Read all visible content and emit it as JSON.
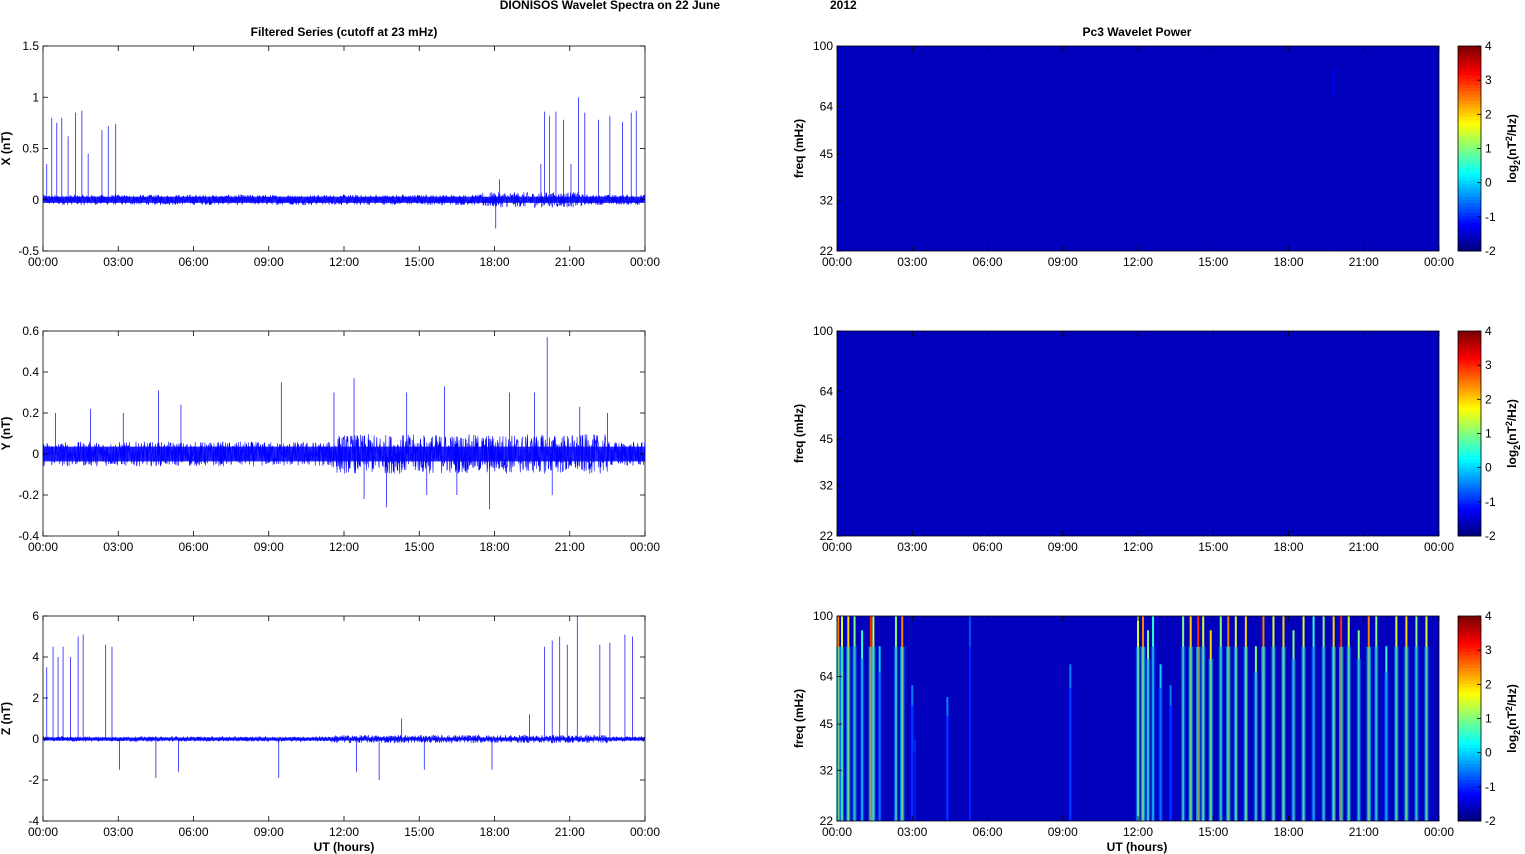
{
  "figure": {
    "title": "DIONISOS Wavelet Spectra on 22 June",
    "title_year": "2012",
    "left_title": "Filtered Series (cutoff at 23 mHz)",
    "right_title": "Pc3 Wavelet Power",
    "xlabel": "UT (hours)"
  },
  "colors": {
    "series_line": "#0000ff",
    "heatmap_background": "#00008f",
    "axes": "#000000"
  },
  "chart_data": [
    {
      "type": "line",
      "ylabel": "X (nT)",
      "x_range": [
        "00:00",
        "24:00"
      ],
      "xticks": [
        "00:00",
        "03:00",
        "06:00",
        "09:00",
        "12:00",
        "15:00",
        "18:00",
        "21:00",
        "00:00"
      ],
      "ylim": [
        -0.5,
        1.5
      ],
      "yticks": [
        "-0.5",
        "0",
        "0.5",
        "1",
        "1.5"
      ],
      "baseline_noise_nT": 0.05,
      "spikes": [
        {
          "t_hours": 0.15,
          "value": 0.35
        },
        {
          "t_hours": 0.35,
          "value": 0.8
        },
        {
          "t_hours": 0.55,
          "value": 0.75
        },
        {
          "t_hours": 0.75,
          "value": 0.8
        },
        {
          "t_hours": 1.0,
          "value": 0.62
        },
        {
          "t_hours": 1.3,
          "value": 0.85
        },
        {
          "t_hours": 1.55,
          "value": 0.87
        },
        {
          "t_hours": 1.8,
          "value": 0.45
        },
        {
          "t_hours": 2.35,
          "value": 0.68
        },
        {
          "t_hours": 2.6,
          "value": 0.72
        },
        {
          "t_hours": 2.9,
          "value": 0.74
        },
        {
          "t_hours": 18.05,
          "value": -0.28
        },
        {
          "t_hours": 18.2,
          "value": 0.2
        },
        {
          "t_hours": 19.85,
          "value": 0.35
        },
        {
          "t_hours": 20.0,
          "value": 0.86
        },
        {
          "t_hours": 20.2,
          "value": 0.82
        },
        {
          "t_hours": 20.45,
          "value": 0.86
        },
        {
          "t_hours": 20.75,
          "value": 0.78
        },
        {
          "t_hours": 21.05,
          "value": 0.35
        },
        {
          "t_hours": 21.35,
          "value": 1.0
        },
        {
          "t_hours": 21.6,
          "value": 0.85
        },
        {
          "t_hours": 22.15,
          "value": 0.78
        },
        {
          "t_hours": 22.6,
          "value": 0.82
        },
        {
          "t_hours": 23.1,
          "value": 0.76
        },
        {
          "t_hours": 23.45,
          "value": 0.85
        },
        {
          "t_hours": 23.65,
          "value": 0.87
        }
      ]
    },
    {
      "type": "line",
      "ylabel": "Y (nT)",
      "x_range": [
        "00:00",
        "24:00"
      ],
      "xticks": [
        "00:00",
        "03:00",
        "06:00",
        "09:00",
        "12:00",
        "15:00",
        "18:00",
        "21:00",
        "00:00"
      ],
      "ylim": [
        -0.4,
        0.6
      ],
      "yticks": [
        "-0.4",
        "-0.2",
        "0",
        "0.2",
        "0.4",
        "0.6"
      ],
      "baseline_noise_nT": 0.06,
      "spikes": [
        {
          "t_hours": 0.5,
          "value": 0.2
        },
        {
          "t_hours": 1.9,
          "value": 0.22
        },
        {
          "t_hours": 3.2,
          "value": 0.2
        },
        {
          "t_hours": 4.6,
          "value": 0.31
        },
        {
          "t_hours": 5.5,
          "value": 0.24
        },
        {
          "t_hours": 9.5,
          "value": 0.35
        },
        {
          "t_hours": 11.6,
          "value": 0.3
        },
        {
          "t_hours": 12.4,
          "value": 0.37
        },
        {
          "t_hours": 12.8,
          "value": -0.22
        },
        {
          "t_hours": 13.7,
          "value": -0.26
        },
        {
          "t_hours": 14.5,
          "value": 0.3
        },
        {
          "t_hours": 15.3,
          "value": -0.2
        },
        {
          "t_hours": 16.0,
          "value": 0.33
        },
        {
          "t_hours": 16.5,
          "value": -0.2
        },
        {
          "t_hours": 17.8,
          "value": -0.27
        },
        {
          "t_hours": 18.6,
          "value": 0.3
        },
        {
          "t_hours": 19.6,
          "value": 0.3
        },
        {
          "t_hours": 20.1,
          "value": 0.57
        },
        {
          "t_hours": 20.3,
          "value": -0.2
        },
        {
          "t_hours": 21.4,
          "value": 0.23
        },
        {
          "t_hours": 22.5,
          "value": 0.2
        }
      ]
    },
    {
      "type": "line",
      "ylabel": "Z (nT)",
      "x_range": [
        "00:00",
        "24:00"
      ],
      "xticks": [
        "00:00",
        "03:00",
        "06:00",
        "09:00",
        "12:00",
        "15:00",
        "18:00",
        "21:00",
        "00:00"
      ],
      "ylim": [
        -4,
        6
      ],
      "yticks": [
        "-4",
        "-2",
        "0",
        "2",
        "4",
        "6"
      ],
      "baseline_noise_nT": 0.12,
      "spikes": [
        {
          "t_hours": 0.15,
          "value": 3.5
        },
        {
          "t_hours": 0.4,
          "value": 4.5
        },
        {
          "t_hours": 0.6,
          "value": 4.0
        },
        {
          "t_hours": 0.8,
          "value": 4.5
        },
        {
          "t_hours": 1.1,
          "value": 4.0
        },
        {
          "t_hours": 1.4,
          "value": 5.0
        },
        {
          "t_hours": 1.6,
          "value": 5.1
        },
        {
          "t_hours": 2.5,
          "value": 4.6
        },
        {
          "t_hours": 2.75,
          "value": 4.5
        },
        {
          "t_hours": 3.05,
          "value": -1.5
        },
        {
          "t_hours": 4.5,
          "value": -1.9
        },
        {
          "t_hours": 5.4,
          "value": -1.6
        },
        {
          "t_hours": 9.4,
          "value": -1.9
        },
        {
          "t_hours": 12.5,
          "value": -1.6
        },
        {
          "t_hours": 13.4,
          "value": -2.0
        },
        {
          "t_hours": 14.3,
          "value": 1.0
        },
        {
          "t_hours": 15.2,
          "value": -1.5
        },
        {
          "t_hours": 17.9,
          "value": -1.5
        },
        {
          "t_hours": 19.4,
          "value": 1.2
        },
        {
          "t_hours": 20.0,
          "value": 4.5
        },
        {
          "t_hours": 20.3,
          "value": 4.8
        },
        {
          "t_hours": 20.6,
          "value": 5.0
        },
        {
          "t_hours": 20.9,
          "value": 4.6
        },
        {
          "t_hours": 21.3,
          "value": 6.0
        },
        {
          "t_hours": 22.2,
          "value": 4.6
        },
        {
          "t_hours": 22.6,
          "value": 4.7
        },
        {
          "t_hours": 23.2,
          "value": 5.1
        },
        {
          "t_hours": 23.5,
          "value": 5.0
        }
      ]
    },
    {
      "type": "heatmap",
      "ylabel": "freq (mHz)",
      "colorbar_label": "log2(nT2/Hz)",
      "x_range": [
        "00:00",
        "24:00"
      ],
      "xticks": [
        "00:00",
        "03:00",
        "06:00",
        "09:00",
        "12:00",
        "15:00",
        "18:00",
        "21:00",
        "00:00"
      ],
      "yticks": [
        "100",
        "64",
        "45",
        "32",
        "22"
      ],
      "clim": [
        -2,
        4
      ],
      "cticks": [
        "4",
        "3",
        "2",
        "1",
        "0",
        "-1",
        "-2"
      ],
      "background_level": -2,
      "events": [
        {
          "t_hours": 19.8,
          "fmax_mHz": 85,
          "level": -1.3
        }
      ]
    },
    {
      "type": "heatmap",
      "ylabel": "freq (mHz)",
      "colorbar_label": "log2(nT2/Hz)",
      "x_range": [
        "00:00",
        "24:00"
      ],
      "xticks": [
        "00:00",
        "03:00",
        "06:00",
        "09:00",
        "12:00",
        "15:00",
        "18:00",
        "21:00",
        "00:00"
      ],
      "yticks": [
        "100",
        "64",
        "45",
        "32",
        "22"
      ],
      "clim": [
        -2,
        4
      ],
      "cticks": [
        "4",
        "3",
        "2",
        "1",
        "0",
        "-1",
        "-2"
      ],
      "background_level": -2,
      "events": []
    },
    {
      "type": "heatmap",
      "ylabel": "freq (mHz)",
      "colorbar_label": "log2(nT2/Hz)",
      "x_range": [
        "00:00",
        "24:00"
      ],
      "xticks": [
        "00:00",
        "03:00",
        "06:00",
        "09:00",
        "12:00",
        "15:00",
        "18:00",
        "21:00",
        "00:00"
      ],
      "yticks": [
        "100",
        "64",
        "45",
        "32",
        "22"
      ],
      "clim": [
        -2,
        4
      ],
      "cticks": [
        "4",
        "3",
        "2",
        "1",
        "0",
        "-1",
        "-2"
      ],
      "background_level": -2,
      "events": [
        {
          "t_hours": 0.05,
          "fmax_mHz": 100,
          "level": 2.5
        },
        {
          "t_hours": 0.2,
          "fmax_mHz": 100,
          "level": 1.5
        },
        {
          "t_hours": 0.45,
          "fmax_mHz": 100,
          "level": 2.0
        },
        {
          "t_hours": 0.7,
          "fmax_mHz": 100,
          "level": 1.0
        },
        {
          "t_hours": 1.0,
          "fmax_mHz": 90,
          "level": 0.5
        },
        {
          "t_hours": 1.35,
          "fmax_mHz": 100,
          "level": 3.0
        },
        {
          "t_hours": 1.45,
          "fmax_mHz": 100,
          "level": 1.5
        },
        {
          "t_hours": 1.7,
          "fmax_mHz": 80,
          "level": 0.0
        },
        {
          "t_hours": 2.35,
          "fmax_mHz": 100,
          "level": 1.0
        },
        {
          "t_hours": 2.6,
          "fmax_mHz": 100,
          "level": 2.5
        },
        {
          "t_hours": 3.0,
          "fmax_mHz": 60,
          "level": -0.5
        },
        {
          "t_hours": 3.1,
          "fmax_mHz": 40,
          "level": -1.0
        },
        {
          "t_hours": 4.4,
          "fmax_mHz": 55,
          "level": -0.5
        },
        {
          "t_hours": 5.3,
          "fmax_mHz": 100,
          "level": -0.8
        },
        {
          "t_hours": 9.3,
          "fmax_mHz": 70,
          "level": -0.5
        },
        {
          "t_hours": 12.0,
          "fmax_mHz": 100,
          "level": 1.5
        },
        {
          "t_hours": 12.2,
          "fmax_mHz": 100,
          "level": 2.5
        },
        {
          "t_hours": 12.4,
          "fmax_mHz": 90,
          "level": 1.0
        },
        {
          "t_hours": 12.6,
          "fmax_mHz": 100,
          "level": 0.5
        },
        {
          "t_hours": 12.9,
          "fmax_mHz": 70,
          "level": 0.0
        },
        {
          "t_hours": 13.3,
          "fmax_mHz": 60,
          "level": -0.5
        },
        {
          "t_hours": 13.8,
          "fmax_mHz": 100,
          "level": 1.0
        },
        {
          "t_hours": 14.1,
          "fmax_mHz": 100,
          "level": 2.0
        },
        {
          "t_hours": 14.4,
          "fmax_mHz": 100,
          "level": 3.0
        },
        {
          "t_hours": 14.6,
          "fmax_mHz": 100,
          "level": 1.5
        },
        {
          "t_hours": 14.9,
          "fmax_mHz": 90,
          "level": 2.0
        },
        {
          "t_hours": 15.3,
          "fmax_mHz": 100,
          "level": 1.0
        },
        {
          "t_hours": 15.6,
          "fmax_mHz": 100,
          "level": 2.5
        },
        {
          "t_hours": 15.9,
          "fmax_mHz": 100,
          "level": 1.5
        },
        {
          "t_hours": 16.3,
          "fmax_mHz": 100,
          "level": 2.0
        },
        {
          "t_hours": 16.7,
          "fmax_mHz": 80,
          "level": 1.0
        },
        {
          "t_hours": 17.0,
          "fmax_mHz": 100,
          "level": 2.5
        },
        {
          "t_hours": 17.4,
          "fmax_mHz": 100,
          "level": 1.5
        },
        {
          "t_hours": 17.8,
          "fmax_mHz": 100,
          "level": 2.0
        },
        {
          "t_hours": 18.2,
          "fmax_mHz": 90,
          "level": 1.0
        },
        {
          "t_hours": 18.6,
          "fmax_mHz": 100,
          "level": 1.5
        },
        {
          "t_hours": 19.0,
          "fmax_mHz": 100,
          "level": 0.5
        },
        {
          "t_hours": 19.4,
          "fmax_mHz": 100,
          "level": 1.0
        },
        {
          "t_hours": 19.8,
          "fmax_mHz": 100,
          "level": 2.0
        },
        {
          "t_hours": 20.1,
          "fmax_mHz": 100,
          "level": 3.0
        },
        {
          "t_hours": 20.4,
          "fmax_mHz": 100,
          "level": 1.5
        },
        {
          "t_hours": 20.8,
          "fmax_mHz": 90,
          "level": 1.0
        },
        {
          "t_hours": 21.2,
          "fmax_mHz": 100,
          "level": 2.5
        },
        {
          "t_hours": 21.5,
          "fmax_mHz": 100,
          "level": 1.0
        },
        {
          "t_hours": 21.9,
          "fmax_mHz": 80,
          "level": 0.5
        },
        {
          "t_hours": 22.3,
          "fmax_mHz": 100,
          "level": 1.5
        },
        {
          "t_hours": 22.7,
          "fmax_mHz": 100,
          "level": 2.0
        },
        {
          "t_hours": 23.1,
          "fmax_mHz": 100,
          "level": 1.0
        },
        {
          "t_hours": 23.5,
          "fmax_mHz": 100,
          "level": 1.5
        }
      ]
    }
  ]
}
